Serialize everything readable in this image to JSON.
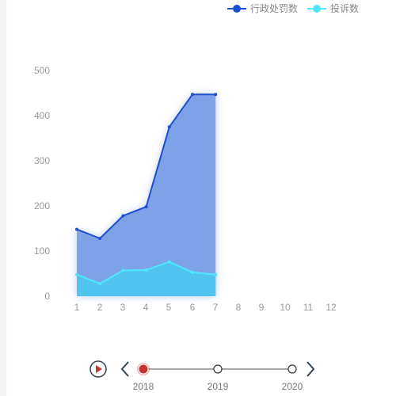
{
  "chart_data": {
    "type": "area",
    "categories": [
      "1",
      "2",
      "3",
      "4",
      "5",
      "6",
      "7",
      "8",
      "9",
      "10",
      "11",
      "12"
    ],
    "series": [
      {
        "name": "行政处罚数",
        "color": "#1e4fcf",
        "fill": "#7a9fe6",
        "values": [
          148,
          128,
          178,
          198,
          375,
          447,
          447,
          null,
          null,
          null,
          null,
          null
        ]
      },
      {
        "name": "投诉数",
        "color": "#4ee6ff",
        "fill": "#4bc6ee",
        "values": [
          48,
          28,
          57,
          58,
          76,
          53,
          48,
          null,
          null,
          null,
          null,
          null
        ]
      }
    ],
    "yticks": [
      "0",
      "100",
      "200",
      "300",
      "400",
      "500"
    ],
    "ylim": [
      0,
      500
    ],
    "grid": false,
    "legend_position": "top-right"
  },
  "timeline": {
    "years": [
      "2018",
      "2019",
      "2020"
    ],
    "current": "2018",
    "current_color": "#c23531"
  },
  "icons": {
    "play": "play-icon",
    "prev": "chevron-left-icon",
    "next": "chevron-right-icon"
  }
}
